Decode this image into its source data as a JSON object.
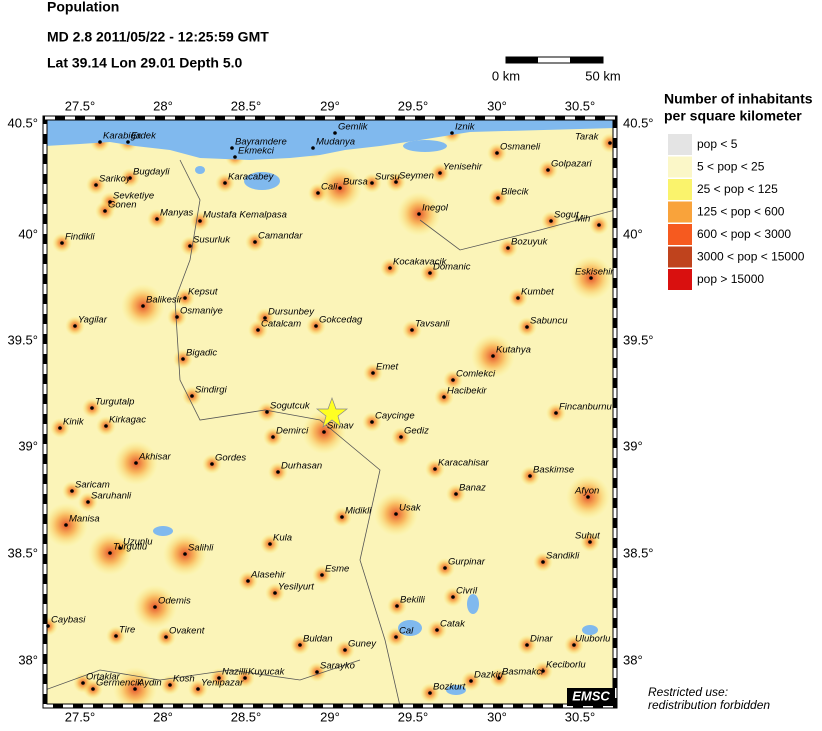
{
  "header": {
    "title": "Population",
    "event": "MD 2.8  2011/05/22 - 12:25:59 GMT",
    "location": "Lat 39.14    Lon 29.01    Depth  5.0"
  },
  "scale": {
    "start": "0 km",
    "end": "50 km"
  },
  "axes": {
    "lon_labels": [
      "27.5°",
      "28°",
      "28.5°",
      "29°",
      "29.5°",
      "30°",
      "30.5°"
    ],
    "lat_labels": [
      "40.5°",
      "40°",
      "39.5°",
      "39°",
      "38.5°",
      "38°"
    ]
  },
  "legend": {
    "title_line1": "Number of inhabitants",
    "title_line2": "per square kilometer",
    "items": [
      {
        "label": "pop < 5",
        "color": "#e4e4e4"
      },
      {
        "label": "5 < pop < 25",
        "color": "#fbf7c8"
      },
      {
        "label": "25 < pop < 125",
        "color": "#faf36c"
      },
      {
        "label": "125 < pop < 600",
        "color": "#f9a33b"
      },
      {
        "label": "600 < pop < 3000",
        "color": "#f65a1f"
      },
      {
        "label": "3000 < pop < 15000",
        "color": "#bf431d"
      },
      {
        "label": "pop > 15000",
        "color": "#d9100f"
      }
    ]
  },
  "cities": [
    "Karabiga",
    "Erdek",
    "Bayramdere",
    "Ekmekci",
    "Gemlik",
    "Mudanya",
    "Iznik",
    "Tarak",
    "Osmaneli",
    "Golpazari",
    "Sarikoy",
    "Bugdayli",
    "Karacabey",
    "Cali",
    "Bursa",
    "Sursu",
    "Seymen",
    "Yenisehir",
    "Bilecik",
    "Sevketiye",
    "Gonen",
    "Manyas",
    "Mustafa Kemalpasa",
    "Inegol",
    "Sogut",
    "Mih",
    "Findikli",
    "Susurluk",
    "Camandar",
    "Bozuyuk",
    "Kocakavacik",
    "Domanic",
    "Eskisehir",
    "Kepsut",
    "Kumbet",
    "Balikesir",
    "Osmaniye",
    "Dursunbey",
    "Catalcam",
    "Gokcedag",
    "Yagilar",
    "Tavsanli",
    "Sabuncu",
    "Bigadic",
    "Kutahya",
    "Emet",
    "Comlekci",
    "Sindirgi",
    "Hacibekir",
    "Turgutalp",
    "Sogutcuk",
    "Caycinge",
    "Fincanburnu",
    "Kinik",
    "Kirkagac",
    "Simav",
    "Demirci",
    "Gediz",
    "Akhisar",
    "Gordes",
    "Durhasan",
    "Karacahisar",
    "Baskimse",
    "Saricam",
    "Saruhanli",
    "Banaz",
    "Afyon",
    "Midikli",
    "Usak",
    "Manisa",
    "Uzunlu",
    "Turgutlu",
    "Salihli",
    "Kula",
    "Suhut",
    "Sandikli",
    "Esme",
    "Gurpinar",
    "Alasehir",
    "Yesilyurt",
    "Civril",
    "Odemis",
    "Bekilli",
    "Caybasi",
    "Tire",
    "Ovakent",
    "Guney",
    "Catak",
    "Dinar",
    "Uluborlu",
    "Buldan",
    "Cal",
    "Basmakci",
    "Keciborlu",
    "Sarayko",
    "Dazkiri",
    "Ortaklar",
    "Germencik",
    "Nazilli",
    "Kuyucak",
    "Kosh",
    "Aydin",
    "Yenipazar",
    "Bozkurt"
  ],
  "watermark": "EMSC",
  "note_line1": "Restricted use:",
  "note_line2": "redistribution forbidden"
}
